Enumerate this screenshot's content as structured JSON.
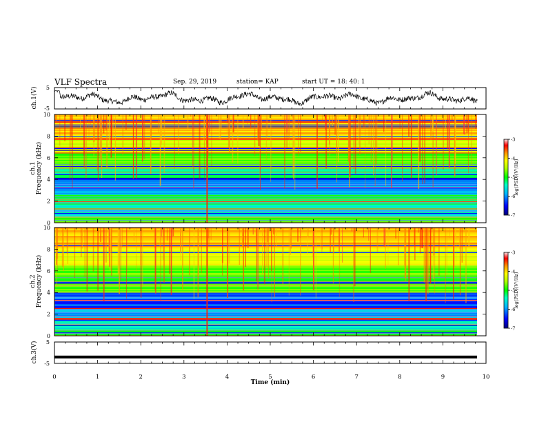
{
  "header": {
    "title": "VLF Spectra",
    "date": "Sep. 29, 2019",
    "station": "station= KAP",
    "start": "start  UT =   18: 40: 1"
  },
  "colors": {
    "colormap": [
      "#00007a",
      "#0000ff",
      "#00b4ff",
      "#00ffc8",
      "#00ff00",
      "#b4ff00",
      "#ffff00",
      "#ff9600",
      "#ff0000",
      "#ffe6e6"
    ],
    "trace": "#000000"
  },
  "chart_data": [
    {
      "type": "line",
      "ylabel": "ch.1(V)",
      "ylim": [
        -5,
        5
      ],
      "yticks": [
        "5",
        "-5"
      ],
      "xlim": [
        0,
        10
      ],
      "description_series": "noisy waveform oscillating roughly between -3 and +3 V"
    },
    {
      "type": "heatmap",
      "ylabel": "Frequency  (kHz)",
      "channel_label": "ch.1",
      "ylim": [
        0,
        10
      ],
      "yticks": [
        "0",
        "2",
        "4",
        "6",
        "8",
        "10"
      ],
      "xlim": [
        0,
        10
      ],
      "colorbar": {
        "label": "log(PSD)(V²/Hz)",
        "range": [
          -7,
          -3
        ],
        "ticks": [
          "-3",
          "-4",
          "-5",
          "-6",
          "-7"
        ]
      }
    },
    {
      "type": "heatmap",
      "ylabel": "Frequency  (kHz)",
      "channel_label": "ch.2",
      "ylim": [
        0,
        10
      ],
      "yticks": [
        "0",
        "2",
        "4",
        "6",
        "8",
        "10"
      ],
      "xlim": [
        0,
        10
      ],
      "colorbar": {
        "label": "log(PSD)(V²/Hz)",
        "range": [
          -7,
          -3
        ],
        "ticks": [
          "-3",
          "-4",
          "-5",
          "-6",
          "-7"
        ]
      }
    },
    {
      "type": "line",
      "ylabel": "ch.3(V)",
      "ylim": [
        -5,
        5
      ],
      "yticks": [
        "5",
        "-5"
      ],
      "xlim": [
        0,
        10
      ],
      "xlabel": "Time  (min)",
      "xticks": [
        "0",
        "1",
        "2",
        "3",
        "4",
        "5",
        "6",
        "7",
        "8",
        "9",
        "10"
      ],
      "constant_value": -2
    }
  ]
}
